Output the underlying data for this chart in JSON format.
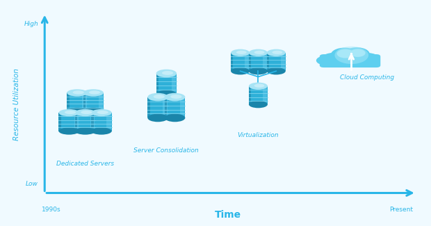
{
  "background_color": "#f0faff",
  "axis_color": "#29b6e8",
  "text_color": "#29b6e8",
  "ylabel": "Resource Utilization",
  "xlabel": "Time",
  "y_low_label": "Low",
  "y_high_label": "High",
  "x_start_label": "1990s",
  "x_end_label": "Present",
  "cylinder_color_top": "#a8e4f5",
  "cylinder_color_mid": "#5ec8eb",
  "cylinder_color_body": "#2eb0d8",
  "cylinder_color_dark": "#1a85aa",
  "cylinder_stripe": "#85d8f0",
  "cloud_color_light": "#a8e8f8",
  "cloud_color_mid": "#5ecfef",
  "cloud_color_dark": "#2ab2d8",
  "figsize": [
    6.2,
    3.25
  ],
  "dpi": 100
}
